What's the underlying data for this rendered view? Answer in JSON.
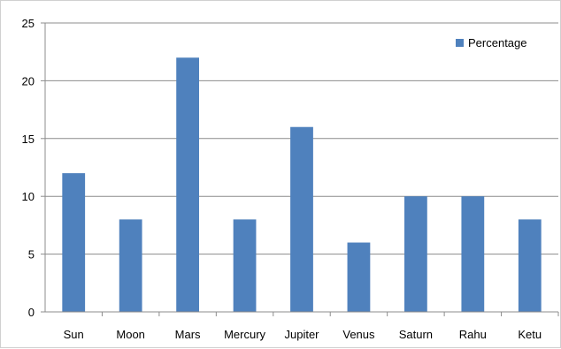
{
  "chart_data": {
    "type": "bar",
    "categories": [
      "Sun",
      "Moon",
      "Mars",
      "Mercury",
      "Jupiter",
      "Venus",
      "Saturn",
      "Rahu",
      "Ketu"
    ],
    "series": [
      {
        "name": "Percentage",
        "values": [
          12,
          8,
          22,
          8,
          16,
          6,
          10,
          10,
          8
        ],
        "color": "#4f81bd"
      }
    ],
    "yticks": [
      0,
      5,
      10,
      15,
      20,
      25
    ],
    "ylim": [
      0,
      25
    ],
    "grid": true,
    "legend": "top-right"
  }
}
